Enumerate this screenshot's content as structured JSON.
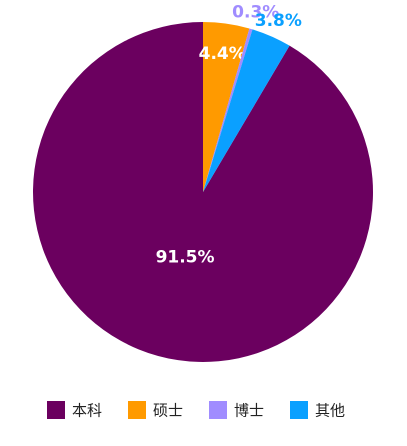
{
  "chart_data": {
    "type": "pie",
    "categories": [
      "本科",
      "硕士",
      "博士",
      "其他"
    ],
    "values": [
      91.5,
      4.4,
      0.3,
      3.8
    ],
    "value_labels": [
      "91.5%",
      "4.4%",
      "0.3%",
      "3.8%"
    ],
    "colors": [
      "#6b005f",
      "#ff9a00",
      "#a08cff",
      "#0aa0ff"
    ],
    "legend": "bottom"
  }
}
